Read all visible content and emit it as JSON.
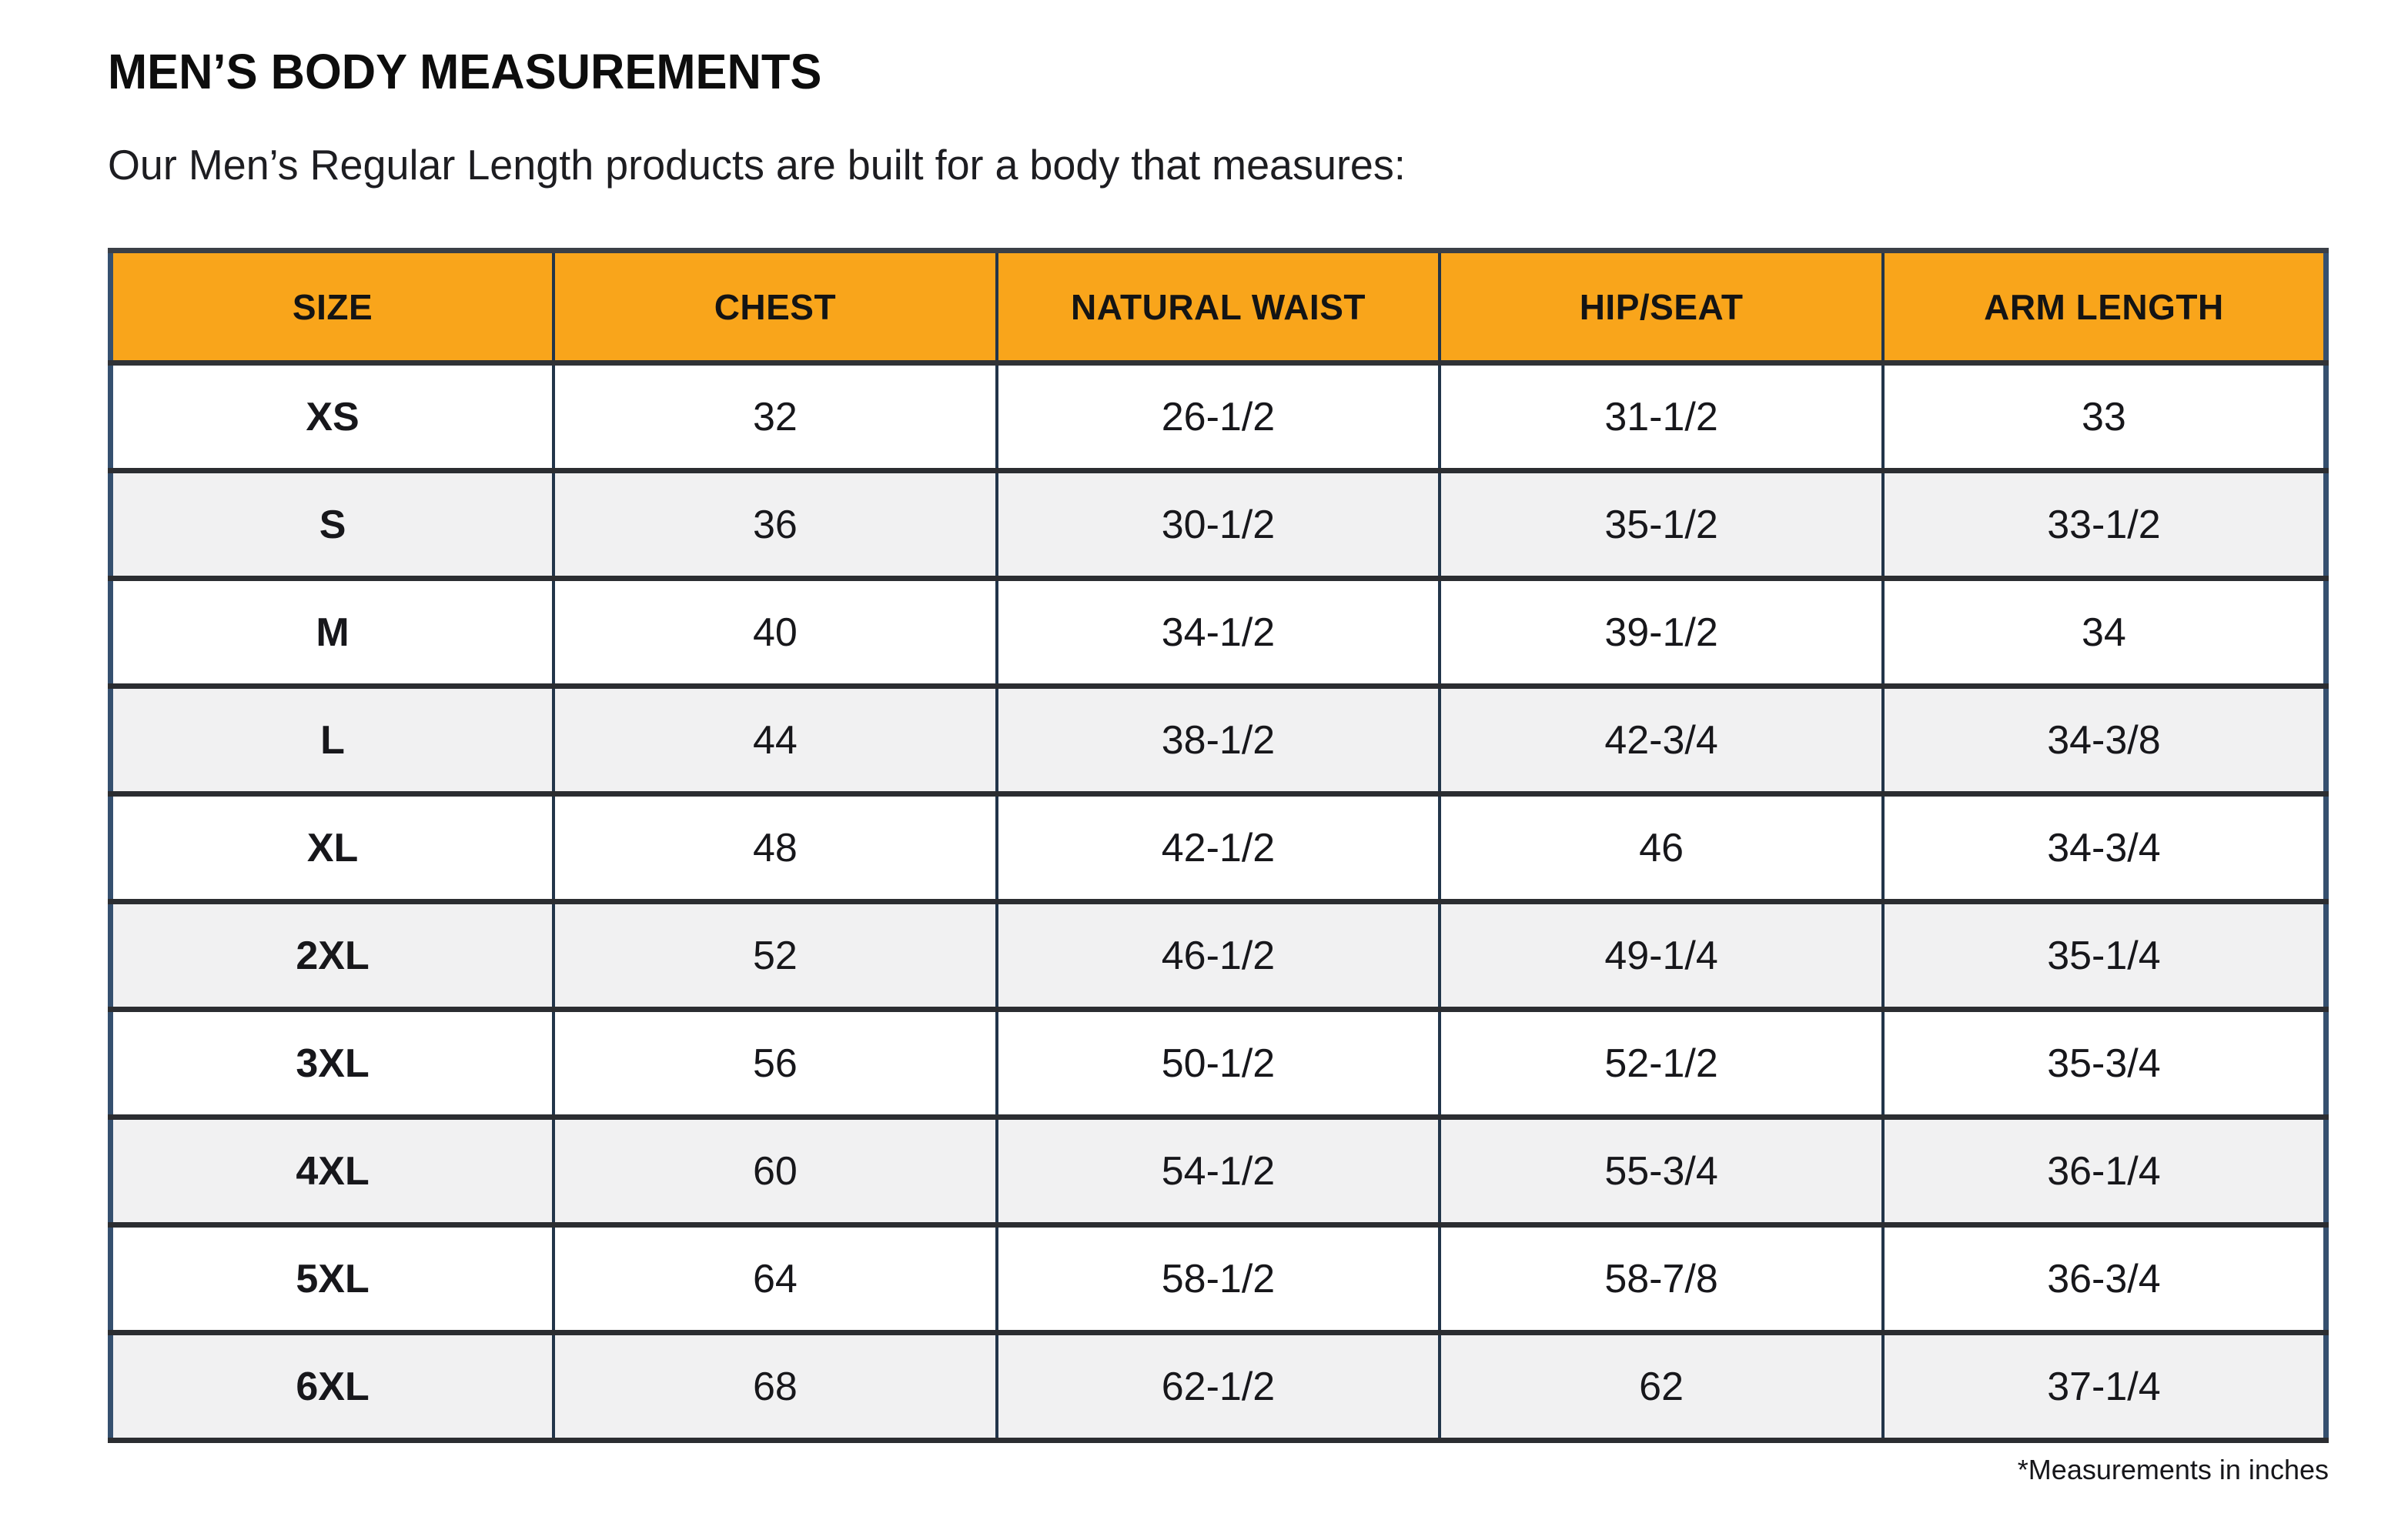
{
  "header": {
    "title": "MEN’S BODY MEASUREMENTS",
    "subtitle": "Our Men’s Regular Length products are built for a body that measures:"
  },
  "footnote": "*Measurements in inches",
  "colors": {
    "header_bg": "#F9A51B",
    "outer_border": "#35506F",
    "column_divider": "#22354A",
    "row_divider": "#2B2D31",
    "alt_row_bg": "#F1F1F2",
    "text": "#121212"
  },
  "chart_data": {
    "type": "table",
    "title": "MEN’S BODY MEASUREMENTS",
    "subtitle": "Our Men’s Regular Length products are built for a body that measures:",
    "units": "inches",
    "note": "*Measurements in inches",
    "columns": [
      "SIZE",
      "CHEST",
      "NATURAL WAIST",
      "HIP/SEAT",
      "ARM LENGTH"
    ],
    "rows": [
      [
        "XS",
        "32",
        "26-1/2",
        "31-1/2",
        "33"
      ],
      [
        "S",
        "36",
        "30-1/2",
        "35-1/2",
        "33-1/2"
      ],
      [
        "M",
        "40",
        "34-1/2",
        "39-1/2",
        "34"
      ],
      [
        "L",
        "44",
        "38-1/2",
        "42-3/4",
        "34-3/8"
      ],
      [
        "XL",
        "48",
        "42-1/2",
        "46",
        "34-3/4"
      ],
      [
        "2XL",
        "52",
        "46-1/2",
        "49-1/4",
        "35-1/4"
      ],
      [
        "3XL",
        "56",
        "50-1/2",
        "52-1/2",
        "35-3/4"
      ],
      [
        "4XL",
        "60",
        "54-1/2",
        "55-3/4",
        "36-1/4"
      ],
      [
        "5XL",
        "64",
        "58-1/2",
        "58-7/8",
        "36-3/4"
      ],
      [
        "6XL",
        "68",
        "62-1/2",
        "62",
        "37-1/4"
      ]
    ]
  }
}
